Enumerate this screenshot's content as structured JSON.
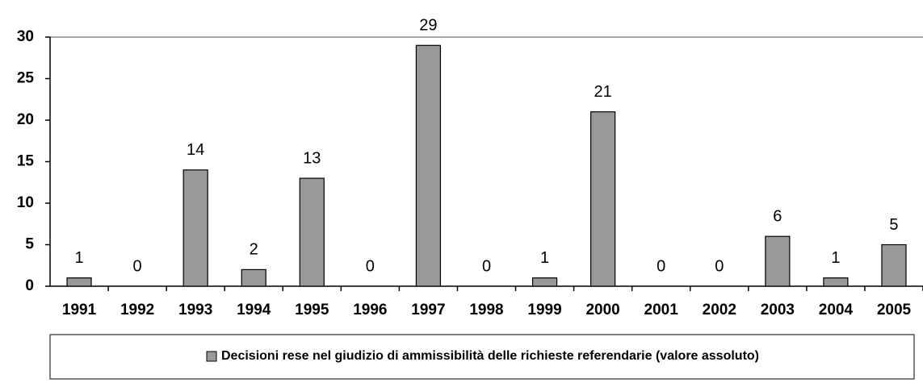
{
  "chart_data": {
    "type": "bar",
    "categories": [
      "1991",
      "1992",
      "1993",
      "1994",
      "1995",
      "1996",
      "1997",
      "1998",
      "1999",
      "2000",
      "2001",
      "2002",
      "2003",
      "2004",
      "2005"
    ],
    "series": [
      {
        "name": "Decisioni rese nel giudizio di ammissibilità delle richieste referendarie (valore assoluto)",
        "color": "#999999",
        "values": [
          1,
          0,
          14,
          2,
          13,
          0,
          29,
          0,
          1,
          21,
          0,
          0,
          6,
          1,
          5
        ]
      }
    ],
    "ylim": [
      0,
      30
    ],
    "yticks": [
      0,
      5,
      10,
      15,
      20,
      25,
      30
    ],
    "grid": false,
    "legend": "bottom"
  }
}
